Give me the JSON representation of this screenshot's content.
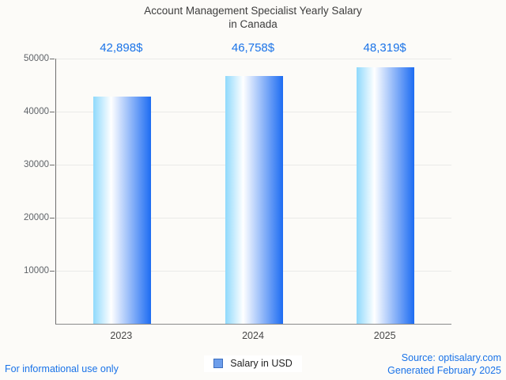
{
  "header": {
    "title_line1": "Account Management Specialist Yearly Salary",
    "title_line2": "in Canada"
  },
  "chart_data": {
    "type": "bar",
    "title": "Account Management Specialist Yearly Salary in Canada",
    "categories": [
      "2023",
      "2024",
      "2025"
    ],
    "series": [
      {
        "name": "Salary in USD",
        "values": [
          42898,
          46758,
          48319
        ]
      }
    ],
    "value_labels": [
      "42,898$",
      "46,758$",
      "48,319$"
    ],
    "xlabel": "",
    "ylabel": "",
    "ylim": [
      0,
      50000
    ],
    "yticks": [
      10000,
      20000,
      30000,
      40000,
      50000
    ],
    "ytick_labels": [
      "10000",
      "20000",
      "30000",
      "40000",
      "50000"
    ],
    "grid": true,
    "legend_position": "bottom",
    "colors": {
      "bar_gradient_left": "#8fd9fc",
      "bar_gradient_mid": "#ffffff",
      "bar_gradient_right": "#1d6cf2",
      "value_label": "#1a73e8",
      "gridline": "#eaeae8",
      "axis": "#6e6e6e",
      "tick_label": "#5f6368",
      "category_label": "#474747",
      "title": "#3d3d3d",
      "background": "#fcfbf8"
    }
  },
  "legend": {
    "label": "Salary in USD",
    "marker_fill": "#6d9eeb",
    "marker_border": "#3d6ebf"
  },
  "footer": {
    "disclaimer": "For informational use only",
    "source": "Source: optisalary.com",
    "generated": "Generated February 2025",
    "text_color": "#1a73e8"
  }
}
